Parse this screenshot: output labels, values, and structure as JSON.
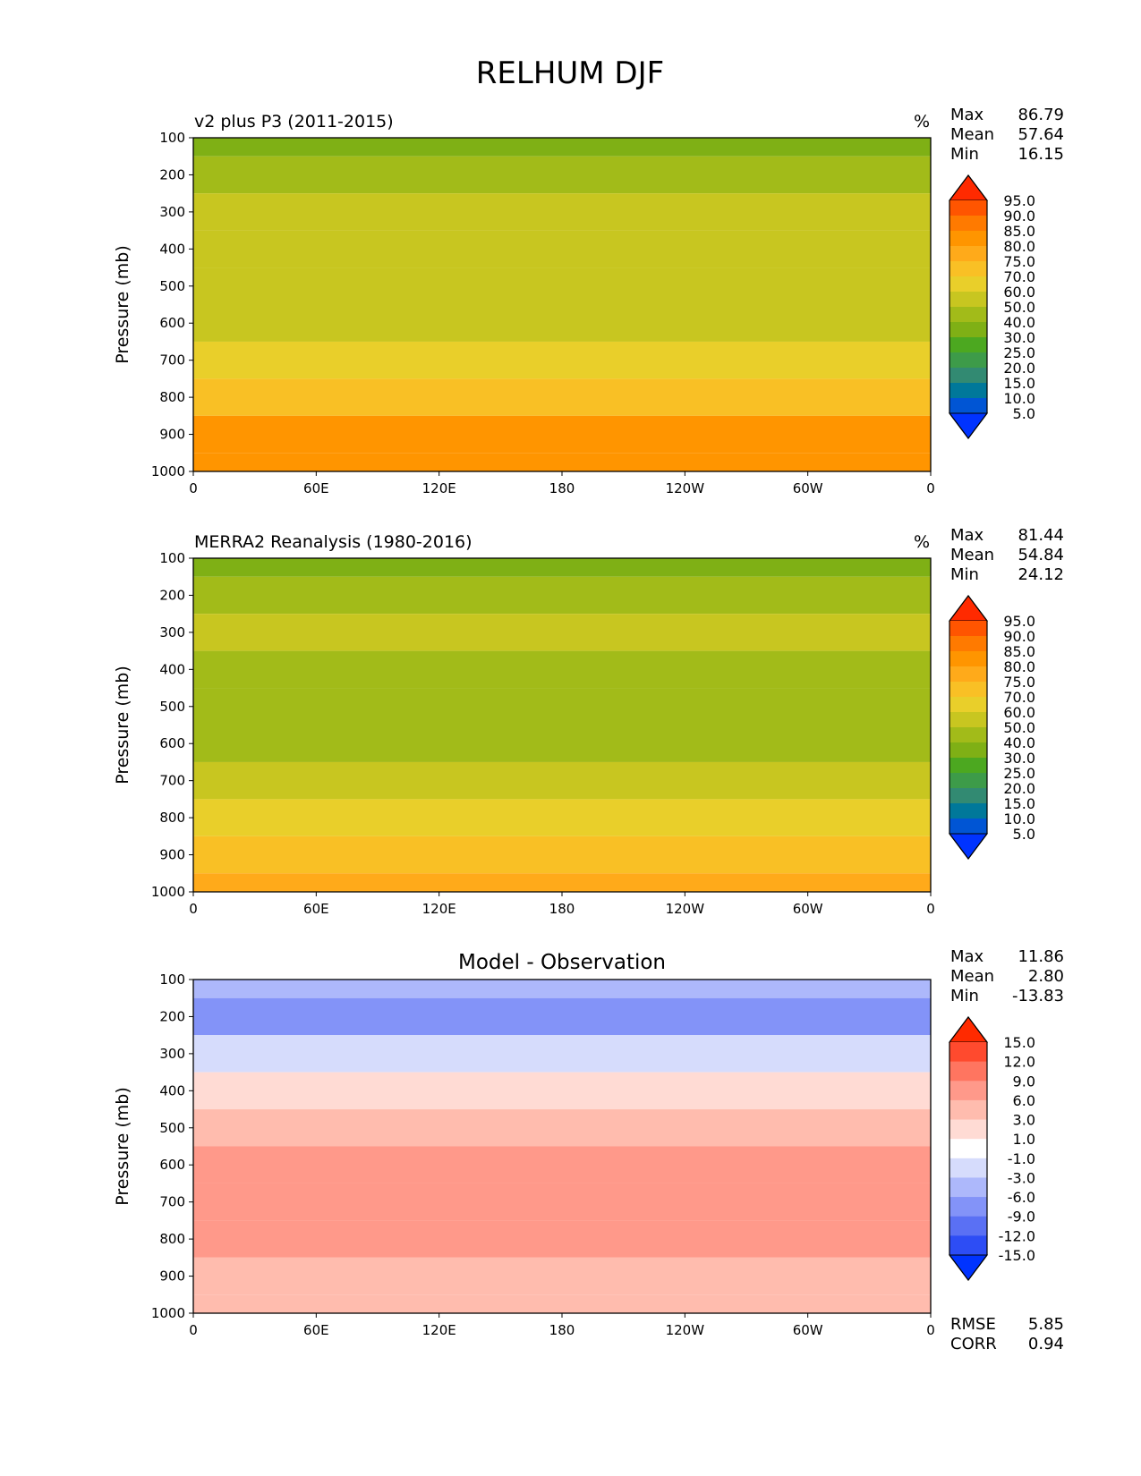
{
  "figure_title": "RELHUM DJF",
  "xticks": [
    "0",
    "60E",
    "120E",
    "180",
    "120W",
    "60W",
    "0"
  ],
  "yticks": [
    "100",
    "200",
    "300",
    "400",
    "500",
    "600",
    "700",
    "800",
    "900",
    "1000"
  ],
  "ylabel": "Pressure (mb)",
  "stat_labels": {
    "max": "Max",
    "mean": "Mean",
    "min": "Min",
    "rmse": "RMSE",
    "corr": "CORR"
  },
  "chart_data": [
    {
      "type": "heatmap",
      "title": "v2 plus P3 (2011-2015)",
      "units": "%",
      "ylabel": "Pressure (mb)",
      "x_range": [
        0,
        360
      ],
      "y_range": [
        1000,
        100
      ],
      "stats": {
        "max": "86.79",
        "mean": "57.64",
        "min": "16.15"
      },
      "colorbar_levels": [
        "95.0",
        "90.0",
        "85.0",
        "80.0",
        "75.0",
        "70.0",
        "60.0",
        "50.0",
        "40.0",
        "30.0",
        "25.0",
        "20.0",
        "15.0",
        "10.0",
        "5.0"
      ],
      "colorbar_colors": [
        "#ff2a00",
        "#ff5500",
        "#ff7a00",
        "#ff9500",
        "#ffaa1a",
        "#f9c025",
        "#e9cf2a",
        "#c8c620",
        "#a2bb19",
        "#7fb015",
        "#4ca820",
        "#3d9b49",
        "#328a72",
        "#00789a",
        "#0055d4",
        "#0033ff"
      ],
      "profile": [
        {
          "p": 100,
          "v": 37
        },
        {
          "p": 200,
          "v": 40
        },
        {
          "p": 300,
          "v": 50
        },
        {
          "p": 400,
          "v": 52
        },
        {
          "p": 500,
          "v": 52
        },
        {
          "p": 600,
          "v": 55
        },
        {
          "p": 700,
          "v": 62
        },
        {
          "p": 800,
          "v": 70
        },
        {
          "p": 900,
          "v": 80
        },
        {
          "p": 1000,
          "v": 80
        }
      ]
    },
    {
      "type": "heatmap",
      "title": "MERRA2 Reanalysis (1980-2016)",
      "units": "%",
      "ylabel": "Pressure (mb)",
      "x_range": [
        0,
        360
      ],
      "y_range": [
        1000,
        100
      ],
      "stats": {
        "max": "81.44",
        "mean": "54.84",
        "min": "24.12"
      },
      "colorbar_levels": [
        "95.0",
        "90.0",
        "85.0",
        "80.0",
        "75.0",
        "70.0",
        "60.0",
        "50.0",
        "40.0",
        "30.0",
        "25.0",
        "20.0",
        "15.0",
        "10.0",
        "5.0"
      ],
      "colorbar_colors": [
        "#ff2a00",
        "#ff5500",
        "#ff7a00",
        "#ff9500",
        "#ffaa1a",
        "#f9c025",
        "#e9cf2a",
        "#c8c620",
        "#a2bb19",
        "#7fb015",
        "#4ca820",
        "#3d9b49",
        "#328a72",
        "#00789a",
        "#0055d4",
        "#0033ff"
      ],
      "profile": [
        {
          "p": 100,
          "v": 38
        },
        {
          "p": 200,
          "v": 42
        },
        {
          "p": 300,
          "v": 50
        },
        {
          "p": 400,
          "v": 46
        },
        {
          "p": 500,
          "v": 46
        },
        {
          "p": 600,
          "v": 48
        },
        {
          "p": 700,
          "v": 52
        },
        {
          "p": 800,
          "v": 60
        },
        {
          "p": 900,
          "v": 70
        },
        {
          "p": 1000,
          "v": 76
        }
      ]
    },
    {
      "type": "heatmap",
      "title": "Model - Observation",
      "ylabel": "Pressure (mb)",
      "x_range": [
        0,
        360
      ],
      "y_range": [
        1000,
        100
      ],
      "stats": {
        "max": "11.86",
        "mean": "2.80",
        "min": "-13.83",
        "rmse": "5.85",
        "corr": "0.94"
      },
      "colorbar_levels": [
        "15.0",
        "12.0",
        "9.0",
        "6.0",
        "3.0",
        "1.0",
        "-1.0",
        "-3.0",
        "-6.0",
        "-9.0",
        "-12.0",
        "-15.0"
      ],
      "colorbar_colors": [
        "#ff2a00",
        "#ff4a2e",
        "#ff7560",
        "#ff998a",
        "#ffbcae",
        "#ffdbd4",
        "#ffffff",
        "#d6dcfc",
        "#adb8fb",
        "#8393f8",
        "#5a70f4",
        "#2d4df5",
        "#0033ff"
      ],
      "profile": [
        {
          "p": 100,
          "v": -4
        },
        {
          "p": 200,
          "v": -7
        },
        {
          "p": 300,
          "v": -2
        },
        {
          "p": 400,
          "v": 2
        },
        {
          "p": 500,
          "v": 5
        },
        {
          "p": 600,
          "v": 6
        },
        {
          "p": 700,
          "v": 6
        },
        {
          "p": 800,
          "v": 7
        },
        {
          "p": 900,
          "v": 5
        },
        {
          "p": 1000,
          "v": 3
        }
      ]
    }
  ]
}
